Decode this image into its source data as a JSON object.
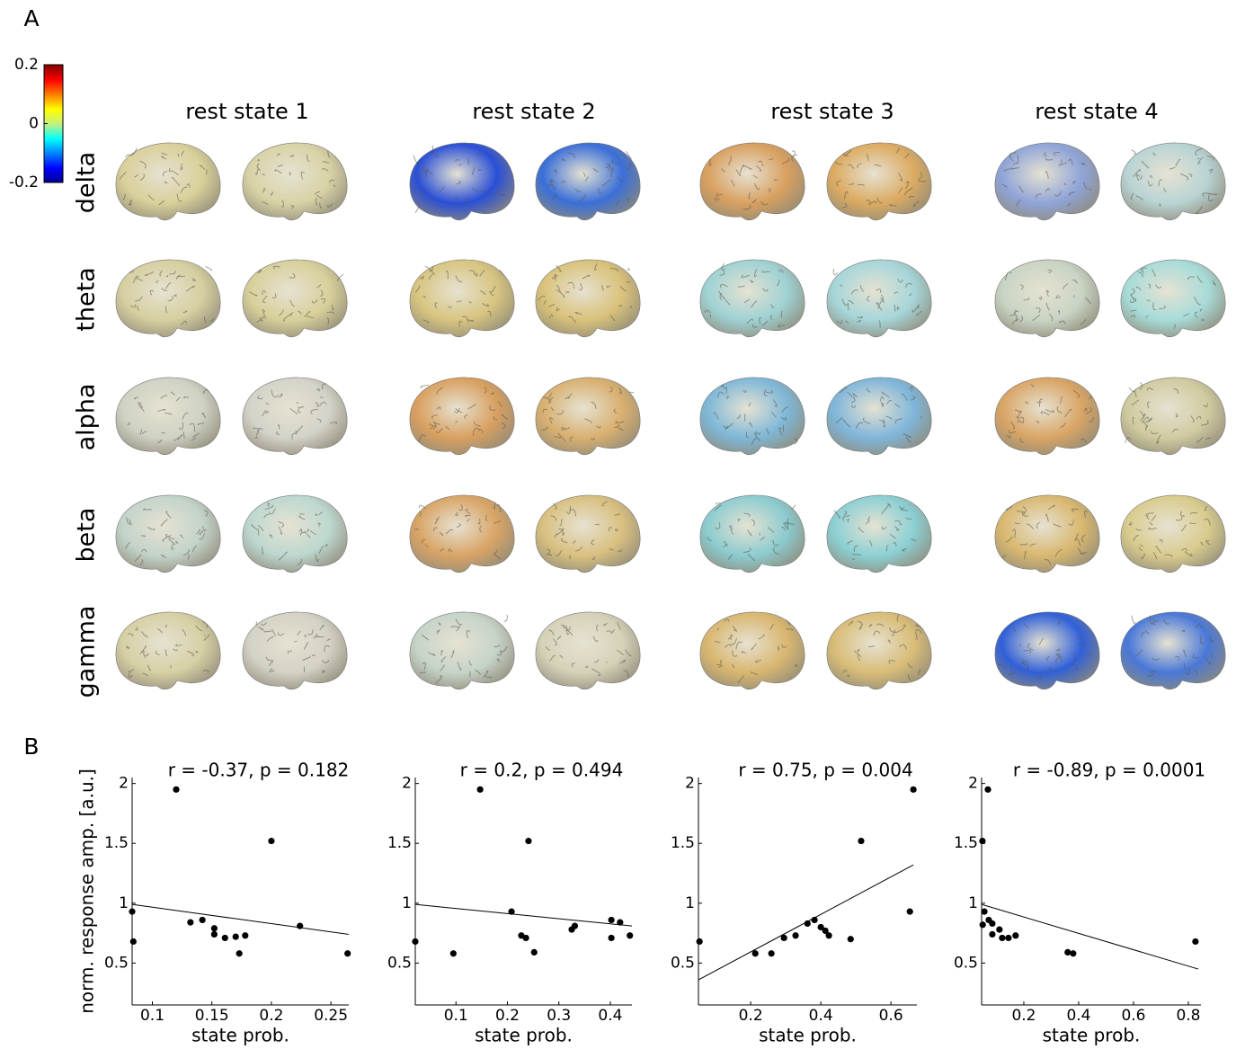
{
  "figure": {
    "panel_a": "A",
    "panel_b": "B",
    "colorbar": {
      "lim": [
        -0.2,
        0.2
      ],
      "ticks": [
        0.2,
        0,
        -0.2
      ]
    },
    "columns": [
      "rest state 1",
      "rest state 2",
      "rest state 3",
      "rest state 4"
    ],
    "rows": [
      "delta",
      "theta",
      "alpha",
      "beta",
      "gamma"
    ]
  },
  "chart_data": [
    {
      "type": "scatter",
      "title": "r = -0.37, p = 0.182",
      "xlabel": "state prob.",
      "ylabel": "norm. response amp. [a.u.]",
      "color": "#000000",
      "x": [
        0.083,
        0.084,
        0.12,
        0.132,
        0.142,
        0.152,
        0.152,
        0.161,
        0.17,
        0.173,
        0.178,
        0.2,
        0.224,
        0.264
      ],
      "values": [
        0.93,
        0.68,
        1.95,
        0.84,
        0.86,
        0.79,
        0.74,
        0.71,
        0.72,
        0.58,
        0.73,
        1.52,
        0.81,
        0.58
      ],
      "fit": {
        "x": [
          0.083,
          0.265
        ],
        "values": [
          0.99,
          0.74
        ]
      },
      "xlim": [
        0.083,
        0.265
      ],
      "ylim": [
        0.15,
        2.05
      ],
      "xticks": [
        0.1,
        0.15,
        0.2,
        0.25
      ],
      "yticks": [
        0.5,
        1,
        1.5,
        2
      ]
    },
    {
      "type": "scatter",
      "title": "r = 0.2, p = 0.494",
      "xlabel": "state prob.",
      "color": "#000000",
      "x": [
        0.021,
        0.095,
        0.147,
        0.208,
        0.227,
        0.236,
        0.241,
        0.252,
        0.325,
        0.331,
        0.402,
        0.402,
        0.419,
        0.438
      ],
      "values": [
        0.68,
        0.58,
        1.95,
        0.93,
        0.73,
        0.71,
        1.52,
        0.59,
        0.78,
        0.81,
        0.86,
        0.71,
        0.84,
        0.73
      ],
      "fit": {
        "x": [
          0.021,
          0.442
        ],
        "values": [
          0.99,
          0.81
        ]
      },
      "xlim": [
        0.021,
        0.442
      ],
      "ylim": [
        0.15,
        2.05
      ],
      "xticks": [
        0.1,
        0.2,
        0.3,
        0.4
      ],
      "yticks": [
        0.5,
        1,
        1.5,
        2
      ]
    },
    {
      "type": "scatter",
      "title": "r = 0.75, p = 0.004",
      "xlabel": "state prob.",
      "color": "#000000",
      "x": [
        0.054,
        0.213,
        0.259,
        0.295,
        0.328,
        0.362,
        0.382,
        0.4,
        0.413,
        0.423,
        0.485,
        0.515,
        0.654,
        0.664
      ],
      "values": [
        0.68,
        0.58,
        0.58,
        0.71,
        0.73,
        0.83,
        0.86,
        0.8,
        0.77,
        0.73,
        0.7,
        1.52,
        0.93,
        1.95
      ],
      "fit": {
        "x": [
          0.051,
          0.664
        ],
        "values": [
          0.36,
          1.32
        ]
      },
      "xlim": [
        0.051,
        0.674
      ],
      "ylim": [
        0.15,
        2.05
      ],
      "xticks": [
        0.2,
        0.4,
        0.6
      ],
      "yticks": [
        0.5,
        1,
        1.5,
        2
      ]
    },
    {
      "type": "scatter",
      "title": "r = -0.89, p = 0.0001",
      "xlabel": "state prob.",
      "color": "#000000",
      "x": [
        0.049,
        0.069,
        0.056,
        0.05,
        0.072,
        0.085,
        0.085,
        0.111,
        0.121,
        0.144,
        0.17,
        0.36,
        0.38,
        0.826
      ],
      "values": [
        1.52,
        1.95,
        0.93,
        0.82,
        0.86,
        0.83,
        0.74,
        0.78,
        0.71,
        0.71,
        0.73,
        0.59,
        0.58,
        0.68
      ],
      "fit": {
        "x": [
          0.046,
          0.836
        ],
        "values": [
          0.99,
          0.45
        ]
      },
      "xlim": [
        0.046,
        0.846
      ],
      "ylim": [
        0.15,
        2.05
      ],
      "xticks": [
        0.2,
        0.4,
        0.6,
        0.8
      ],
      "yticks": [
        0.5,
        1,
        1.5,
        2
      ]
    }
  ]
}
